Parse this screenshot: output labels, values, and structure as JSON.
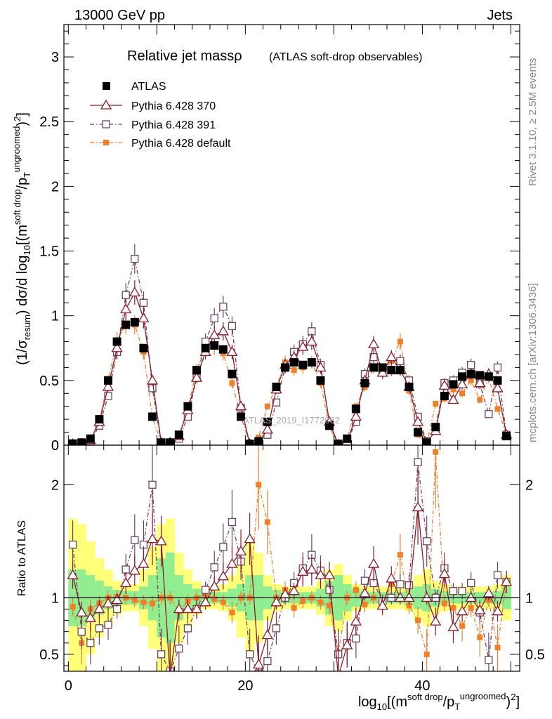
{
  "header": {
    "left": "13000 GeV pp",
    "right": "Jets"
  },
  "side": {
    "rivet": "Rivet 3.1.10, ≥ 2.5M events",
    "mcplots": "mcplots.cern.ch [arXiv:1306.3436]"
  },
  "watermark": "ATLAS_2019_I1772062",
  "chart_data": {
    "type": "scatter",
    "title": "Relative jet massρ",
    "subtitle": "(ATLAS soft-drop observables)",
    "ylabel_main": "(1/σresum) dσ/d log10[(msoft drop/pTungroomed)2]",
    "ylabel_ratio": "Ratio to ATLAS",
    "xlabel": "log10[(msoft drop/pTungroomed)2]",
    "xlim": [
      -0.5,
      51
    ],
    "ylim_main": [
      0,
      3.25
    ],
    "ylim_ratio": [
      0.35,
      2.35
    ],
    "x_ticks": [
      "0",
      "20",
      "40"
    ],
    "y_ticks_main": [
      "0",
      "0.5",
      "1",
      "1.5",
      "2",
      "2.5",
      "3"
    ],
    "y_ticks_ratio": [
      "0.5",
      "1",
      "2"
    ],
    "legend": [
      "ATLAS",
      "Pythia 6.428 370",
      "Pythia 6.428 391",
      "Pythia 6.428 default"
    ],
    "colors": {
      "atlas": "#000000",
      "p370": "#8b1a2b",
      "p391": "#6b4560",
      "pdef": "#f07f2a",
      "band_inner": "#90ee90",
      "band_outer": "#ffff7a"
    },
    "x": [
      0.5,
      1.5,
      2.5,
      3.5,
      4.5,
      5.5,
      6.5,
      7.5,
      8.5,
      9.5,
      10.5,
      11.5,
      12.5,
      13.5,
      14.5,
      15.5,
      16.5,
      17.5,
      18.5,
      19.5,
      20.5,
      21.5,
      22.5,
      23.5,
      24.5,
      25.5,
      26.5,
      27.5,
      28.5,
      29.5,
      30.5,
      31.5,
      32.5,
      33.5,
      34.5,
      35.5,
      36.5,
      37.5,
      38.5,
      39.5,
      40.5,
      41.5,
      42.5,
      43.5,
      44.5,
      45.5,
      46.5,
      47.5,
      48.5,
      49.5
    ],
    "series": [
      {
        "name": "ATLAS",
        "values": [
          0.01,
          0.02,
          0.05,
          0.2,
          0.5,
          0.8,
          0.93,
          0.95,
          0.75,
          0.22,
          0.02,
          0.02,
          0.08,
          0.3,
          0.58,
          0.75,
          0.77,
          0.74,
          0.55,
          0.22,
          0.01,
          0.03,
          0.18,
          0.45,
          0.6,
          0.64,
          0.62,
          0.64,
          0.5,
          0.15,
          0.01,
          0.05,
          0.28,
          0.48,
          0.6,
          0.6,
          0.58,
          0.58,
          0.45,
          0.1,
          0.02,
          0.14,
          0.38,
          0.47,
          0.53,
          0.55,
          0.54,
          0.53,
          0.5,
          0.07
        ]
      },
      {
        "name": "Pythia 6.428 370",
        "values": [
          0.01,
          0.015,
          0.04,
          0.18,
          0.45,
          0.75,
          1.05,
          1.18,
          0.98,
          0.5,
          0.02,
          0.02,
          0.07,
          0.27,
          0.52,
          0.72,
          0.85,
          0.88,
          0.72,
          0.3,
          0.01,
          0.02,
          0.12,
          0.43,
          0.62,
          0.68,
          0.76,
          0.8,
          0.6,
          0.18,
          0.005,
          0.03,
          0.22,
          0.5,
          0.78,
          0.56,
          0.68,
          0.58,
          0.45,
          0.18,
          0.02,
          0.11,
          0.46,
          0.35,
          0.47,
          0.55,
          0.48,
          0.55,
          0.44,
          0.08
        ]
      },
      {
        "name": "Pythia 6.428 391",
        "values": [
          0.015,
          0.015,
          0.03,
          0.15,
          0.38,
          0.72,
          1.16,
          1.44,
          1.1,
          0.44,
          0.01,
          0.01,
          0.05,
          0.22,
          0.52,
          0.8,
          0.98,
          1.07,
          0.92,
          0.29,
          0.005,
          0.01,
          0.08,
          0.33,
          0.6,
          0.72,
          0.78,
          0.88,
          0.62,
          0.16,
          0.005,
          0.03,
          0.18,
          0.55,
          0.68,
          0.58,
          0.58,
          0.65,
          0.5,
          0.22,
          0.03,
          0.14,
          0.48,
          0.5,
          0.56,
          0.62,
          0.47,
          0.24,
          0.6,
          0.08
        ]
      },
      {
        "name": "Pythia 6.428 default",
        "values": [
          0.009,
          0.012,
          0.045,
          0.19,
          0.5,
          0.81,
          0.93,
          0.93,
          0.72,
          0.21,
          0.02,
          0.02,
          0.07,
          0.29,
          0.58,
          0.77,
          0.76,
          0.71,
          0.48,
          0.22,
          0.01,
          0.06,
          0.3,
          0.45,
          0.64,
          0.58,
          0.6,
          0.64,
          0.48,
          0.14,
          0.005,
          0.05,
          0.3,
          0.45,
          0.6,
          0.55,
          0.65,
          0.8,
          0.42,
          0.08,
          0.01,
          0.32,
          0.36,
          0.43,
          0.4,
          0.5,
          0.35,
          0.52,
          0.28,
          0.08
        ]
      }
    ],
    "ratio_series": [
      {
        "name": "Pythia 6.428 370",
        "values": [
          1.2,
          0.87,
          0.82,
          0.9,
          0.95,
          0.98,
          1.13,
          1.24,
          1.3,
          1.52,
          1.5,
          0.3,
          0.9,
          0.9,
          0.9,
          0.96,
          1.1,
          1.19,
          1.3,
          1.41,
          1.52,
          0.41,
          0.67,
          0.96,
          1.03,
          1.06,
          1.23,
          1.25,
          1.2,
          1.2,
          0.3,
          0.58,
          0.79,
          1.04,
          1.3,
          0.93,
          1.17,
          1.0,
          1.0,
          1.8,
          1.0,
          0.79,
          1.21,
          0.74,
          0.88,
          1.0,
          0.89,
          1.04,
          0.88,
          1.14
        ]
      },
      {
        "name": "Pythia 6.428 391",
        "values": [
          1.47,
          0.7,
          0.6,
          0.73,
          0.76,
          0.9,
          1.25,
          1.51,
          1.47,
          2.0,
          0.5,
          0.35,
          0.55,
          0.73,
          0.9,
          1.07,
          1.27,
          1.45,
          1.67,
          1.32,
          0.5,
          0.33,
          0.44,
          0.73,
          1.0,
          1.13,
          1.26,
          1.38,
          1.24,
          1.07,
          0.5,
          0.6,
          0.64,
          1.15,
          1.13,
          0.97,
          1.0,
          1.12,
          1.11,
          2.2,
          1.5,
          1.0,
          1.26,
          1.06,
          1.06,
          1.13,
          0.87,
          0.45,
          1.2,
          1.14
        ]
      },
      {
        "name": "Pythia 6.428 default",
        "values": [
          0.92,
          0.6,
          0.9,
          0.95,
          1.0,
          1.01,
          1.0,
          0.98,
          0.96,
          0.95,
          1.0,
          1.0,
          0.88,
          0.97,
          1.0,
          1.03,
          0.99,
          0.96,
          0.87,
          1.0,
          1.0,
          2.0,
          1.67,
          1.0,
          1.07,
          0.91,
          0.97,
          1.0,
          0.96,
          0.93,
          0.5,
          1.0,
          1.07,
          0.94,
          1.0,
          0.92,
          1.12,
          1.38,
          0.93,
          0.8,
          0.5,
          2.29,
          0.95,
          0.91,
          0.75,
          0.91,
          0.65,
          0.98,
          0.56,
          1.14
        ]
      }
    ],
    "band_inner_halfwidth": [
      0.25,
      0.25,
      0.2,
      0.15,
      0.1,
      0.07,
      0.06,
      0.06,
      0.1,
      0.2,
      0.35,
      0.4,
      0.2,
      0.12,
      0.08,
      0.06,
      0.05,
      0.05,
      0.08,
      0.12,
      0.2,
      0.2,
      0.1,
      0.07,
      0.05,
      0.05,
      0.05,
      0.05,
      0.08,
      0.15,
      0.2,
      0.12,
      0.08,
      0.06,
      0.05,
      0.05,
      0.05,
      0.05,
      0.07,
      0.1,
      0.12,
      0.08,
      0.06,
      0.05,
      0.05,
      0.05,
      0.05,
      0.05,
      0.06,
      0.1
    ],
    "band_outer_halfwidth": [
      0.7,
      0.65,
      0.5,
      0.35,
      0.25,
      0.15,
      0.12,
      0.12,
      0.25,
      0.45,
      0.65,
      0.7,
      0.4,
      0.25,
      0.15,
      0.1,
      0.1,
      0.12,
      0.2,
      0.35,
      0.5,
      0.4,
      0.2,
      0.12,
      0.1,
      0.1,
      0.1,
      0.1,
      0.15,
      0.25,
      0.3,
      0.2,
      0.12,
      0.1,
      0.1,
      0.1,
      0.1,
      0.1,
      0.12,
      0.2,
      0.25,
      0.15,
      0.12,
      0.1,
      0.1,
      0.1,
      0.1,
      0.1,
      0.12,
      0.2
    ]
  }
}
